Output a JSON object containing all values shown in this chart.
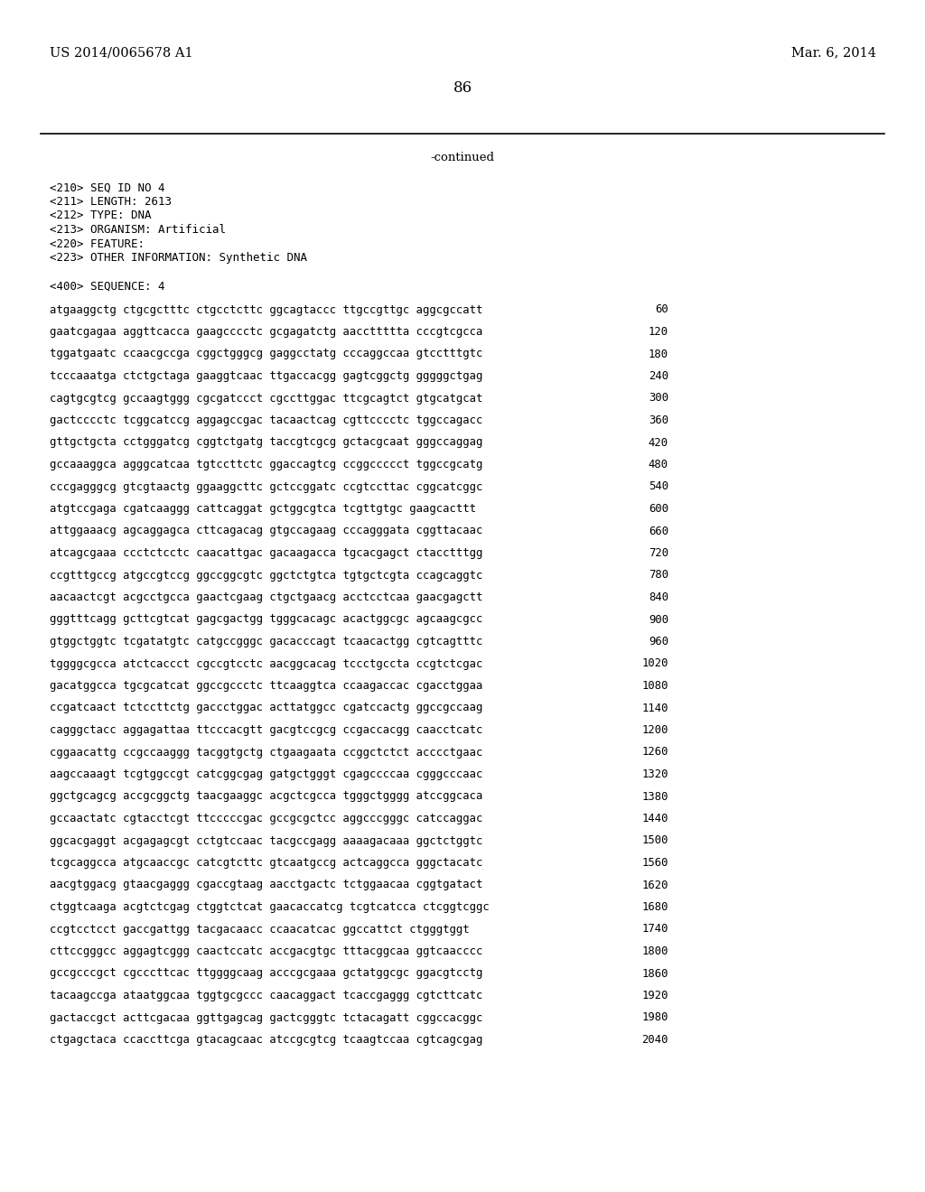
{
  "header_left": "US 2014/0065678 A1",
  "header_right": "Mar. 6, 2014",
  "page_number": "86",
  "continued_text": "-continued",
  "background_color": "#ffffff",
  "text_color": "#000000",
  "metadata_lines": [
    "<210> SEQ ID NO 4",
    "<211> LENGTH: 2613",
    "<212> TYPE: DNA",
    "<213> ORGANISM: Artificial",
    "<220> FEATURE:",
    "<223> OTHER INFORMATION: Synthetic DNA"
  ],
  "sequence_header": "<400> SEQUENCE: 4",
  "sequence_lines": [
    [
      "atgaaggctg ctgcgctttc ctgcctcttc ggcagtaccc ttgccgttgc aggcgccatt",
      "60"
    ],
    [
      "gaatcgagaa aggttcacca gaagcccctc gcgagatctg aaccttttta cccgtcgcca",
      "120"
    ],
    [
      "tggatgaatc ccaacgccga cggctgggcg gaggcctatg cccaggccaa gtcctttgtc",
      "180"
    ],
    [
      "tcccaaatga ctctgctaga gaaggtcaac ttgaccacgg gagtcggctg gggggctgag",
      "240"
    ],
    [
      "cagtgcgtcg gccaagtggg cgcgatccct cgccttggac ttcgcagtct gtgcatgcat",
      "300"
    ],
    [
      "gactcccctc tcggcatccg aggagccgac tacaactcag cgttcccctc tggccagacc",
      "360"
    ],
    [
      "gttgctgcta cctgggatcg cggtctgatg taccgtcgcg gctacgcaat gggccaggag",
      "420"
    ],
    [
      "gccaaaggca agggcatcaa tgtccttctc ggaccagtcg ccggccccct tggccgcatg",
      "480"
    ],
    [
      "cccgagggcg gtcgtaactg ggaaggcttc gctccggatc ccgtccttac cggcatcggc",
      "540"
    ],
    [
      "atgtccgaga cgatcaaggg cattcaggat gctggcgtca tcgttgtgc gaagcacttt",
      "600"
    ],
    [
      "attggaaacg agcaggagca cttcagacag gtgccagaag cccagggata cggttacaac",
      "660"
    ],
    [
      "atcagcgaaa ccctctcctc caacattgac gacaagacca tgcacgagct ctacctttgg",
      "720"
    ],
    [
      "ccgtttgccg atgccgtccg ggccggcgtc ggctctgtca tgtgctcgta ccagcaggtc",
      "780"
    ],
    [
      "aacaactcgt acgcctgcca gaactcgaag ctgctgaacg acctcctcaa gaacgagctt",
      "840"
    ],
    [
      "gggtttcagg gcttcgtcat gagcgactgg tgggcacagc acactggcgc agcaagcgcc",
      "900"
    ],
    [
      "gtggctggtc tcgatatgtc catgccgggc gacacccagt tcaacactgg cgtcagtttc",
      "960"
    ],
    [
      "tggggcgcca atctcaccct cgccgtcctc aacggcacag tccctgccta ccgtctcgac",
      "1020"
    ],
    [
      "gacatggcca tgcgcatcat ggccgccctc ttcaaggtca ccaagaccac cgacctggaa",
      "1080"
    ],
    [
      "ccgatcaact tctccttctg gaccctggac acttatggcc cgatccactg ggccgccaag",
      "1140"
    ],
    [
      "cagggctacc aggagattaa ttcccacgtt gacgtccgcg ccgaccacgg caacctcatc",
      "1200"
    ],
    [
      "cggaacattg ccgccaaggg tacggtgctg ctgaagaata ccggctctct acccctgaac",
      "1260"
    ],
    [
      "aagccaaagt tcgtggccgt catcggcgag gatgctgggt cgagccccaa cgggcccaac",
      "1320"
    ],
    [
      "ggctgcagcg accgcggctg taacgaaggc acgctcgcca tgggctgggg atccggcaca",
      "1380"
    ],
    [
      "gccaactatc cgtacctcgt ttcccccgac gccgcgctcc aggcccgggc catccaggac",
      "1440"
    ],
    [
      "ggcacgaggt acgagagcgt cctgtccaac tacgccgagg aaaagacaaa ggctctggtc",
      "1500"
    ],
    [
      "tcgcaggcca atgcaaccgc catcgtcttc gtcaatgccg actcaggcca gggctacatc",
      "1560"
    ],
    [
      "aacgtggacg gtaacgaggg cgaccgtaag aacctgactc tctggaacaa cggtgatact",
      "1620"
    ],
    [
      "ctggtcaaga acgtctcgag ctggtctcat gaacaccatcg tcgtcatcca ctcggtcggc",
      "1680"
    ],
    [
      "ccgtcctcct gaccgattgg tacgacaacc ccaacatcac ggccattct ctgggtggt",
      "1740"
    ],
    [
      "cttccgggcc aggagtcggg caactccatc accgacgtgc tttacggcaa ggtcaacccc",
      "1800"
    ],
    [
      "gccgcccgct cgcccttcac ttggggcaag acccgcgaaa gctatggcgc ggacgtcctg",
      "1860"
    ],
    [
      "tacaagccga ataatggcaa tggtgcgccc caacaggact tcaccgaggg cgtcttcatc",
      "1920"
    ],
    [
      "gactaccgct acttcgacaa ggttgagcag gactcgggtc tctacagatt cggccacggc",
      "1980"
    ],
    [
      "ctgagctaca ccaccttcga gtacagcaac atccgcgtcg tcaagtccaa cgtcagcgag",
      "2040"
    ]
  ]
}
